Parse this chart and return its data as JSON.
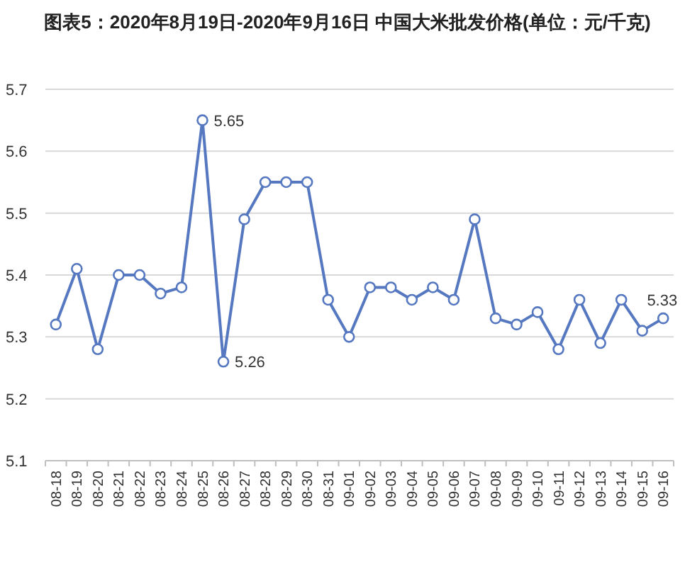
{
  "chart_data": {
    "type": "line",
    "title": "图表5：2020年8月19日-2020年9月16日 中国大米批发价格(单位：元/千克)",
    "categories": [
      "08-18",
      "08-19",
      "08-20",
      "08-21",
      "08-22",
      "08-23",
      "08-24",
      "08-25",
      "08-26",
      "08-27",
      "08-28",
      "08-29",
      "08-30",
      "08-31",
      "09-01",
      "09-02",
      "09-03",
      "09-04",
      "09-05",
      "09-06",
      "09-07",
      "09-08",
      "09-09",
      "09-10",
      "09-11",
      "09-12",
      "09-13",
      "09-14",
      "09-15",
      "09-16"
    ],
    "series": [
      {
        "color": "#5578c0",
        "values": [
          5.32,
          5.41,
          5.28,
          5.4,
          5.4,
          5.37,
          5.38,
          5.65,
          5.26,
          5.49,
          5.55,
          5.55,
          5.55,
          5.36,
          5.3,
          5.38,
          5.38,
          5.36,
          5.38,
          5.36,
          5.49,
          5.33,
          5.32,
          5.34,
          5.28,
          5.36,
          5.29,
          5.36,
          5.31,
          5.33
        ],
        "value_labels": [
          null,
          null,
          null,
          null,
          null,
          null,
          null,
          "5.65",
          "5.26",
          null,
          null,
          null,
          null,
          null,
          null,
          null,
          null,
          null,
          null,
          null,
          null,
          null,
          null,
          null,
          null,
          null,
          null,
          null,
          null,
          "5.33"
        ]
      }
    ],
    "ylim": [
      5.1,
      5.7
    ],
    "yticks": [
      5.1,
      5.2,
      5.3,
      5.4,
      5.5,
      5.6,
      5.7
    ],
    "grid": "y",
    "marker": "circle",
    "line_style": "solid"
  }
}
